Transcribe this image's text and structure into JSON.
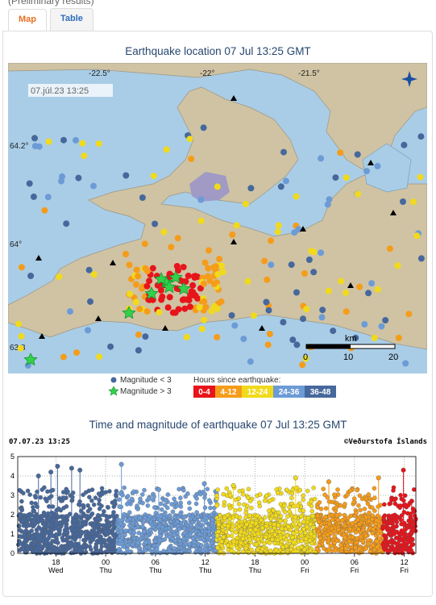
{
  "top_note": "(Preliminary results)",
  "tabs": [
    {
      "label": "Map",
      "active": true
    },
    {
      "label": "Table",
      "active": false
    }
  ],
  "map": {
    "title": "Earthquake location   07 Jul 13:25 GMT",
    "timestamp": "07.júl.23  13:25",
    "lon_labels": [
      "-22.5°",
      "-22°",
      "-21.5°"
    ],
    "lat_labels": [
      "64.2°",
      "64°",
      "63.8"
    ],
    "scale_unit": "km",
    "scale_ticks": [
      "0",
      "10",
      "20"
    ]
  },
  "legend": {
    "mag_small": "Magnitude < 3",
    "mag_large": "Magnitude > 3",
    "hours_title": "Hours since earthquake:",
    "bins": [
      {
        "label": "0-4",
        "color": "#e8141b"
      },
      {
        "label": "4-12",
        "color": "#f59c1a"
      },
      {
        "label": "12-24",
        "color": "#f1da1b"
      },
      {
        "label": "24-36",
        "color": "#6c9bd6"
      },
      {
        "label": "36-48",
        "color": "#46689c"
      }
    ]
  },
  "chart_header": {
    "title": "Time and magnitude of earthquake   07 Jul 13:25 GMT",
    "date": "07.07.23 13:25",
    "credit": "©Veðurstofa Íslands"
  },
  "chart_data": {
    "type": "scatter",
    "ylim": [
      0,
      5
    ],
    "y_ticks": [
      "0",
      "1",
      "2",
      "3",
      "4",
      "5"
    ],
    "x_tick_hours": [
      "18",
      "00",
      "06",
      "12",
      "18",
      "00",
      "06",
      "12"
    ],
    "x_tick_days": [
      "Wed",
      "Thu",
      "Thu",
      "Thu",
      "Thu",
      "Fri",
      "Fri",
      "Fri"
    ],
    "colors_by_age": [
      "#46689c",
      "#6c9bd6",
      "#f1da1b",
      "#f59c1a",
      "#e8141b"
    ],
    "segments_hours_ago": [
      48,
      36,
      24,
      12,
      4,
      0
    ],
    "max_magnitudes": [
      {
        "hours_ago": 45.5,
        "mag": 4.0
      },
      {
        "hours_ago": 44.0,
        "mag": 4.2
      },
      {
        "hours_ago": 43.2,
        "mag": 4.5
      },
      {
        "hours_ago": 41.5,
        "mag": 4.4
      },
      {
        "hours_ago": 40.5,
        "mag": 4.3
      },
      {
        "hours_ago": 35.5,
        "mag": 4.6
      },
      {
        "hours_ago": 31.0,
        "mag": 3.3
      },
      {
        "hours_ago": 25.5,
        "mag": 3.6
      },
      {
        "hours_ago": 22.0,
        "mag": 3.5
      },
      {
        "hours_ago": 14.5,
        "mag": 3.9
      },
      {
        "hours_ago": 10.5,
        "mag": 3.7
      },
      {
        "hours_ago": 4.5,
        "mag": 3.9
      },
      {
        "hours_ago": 1.5,
        "mag": 4.3
      },
      {
        "hours_ago": 0.5,
        "mag": 2.7
      }
    ]
  }
}
